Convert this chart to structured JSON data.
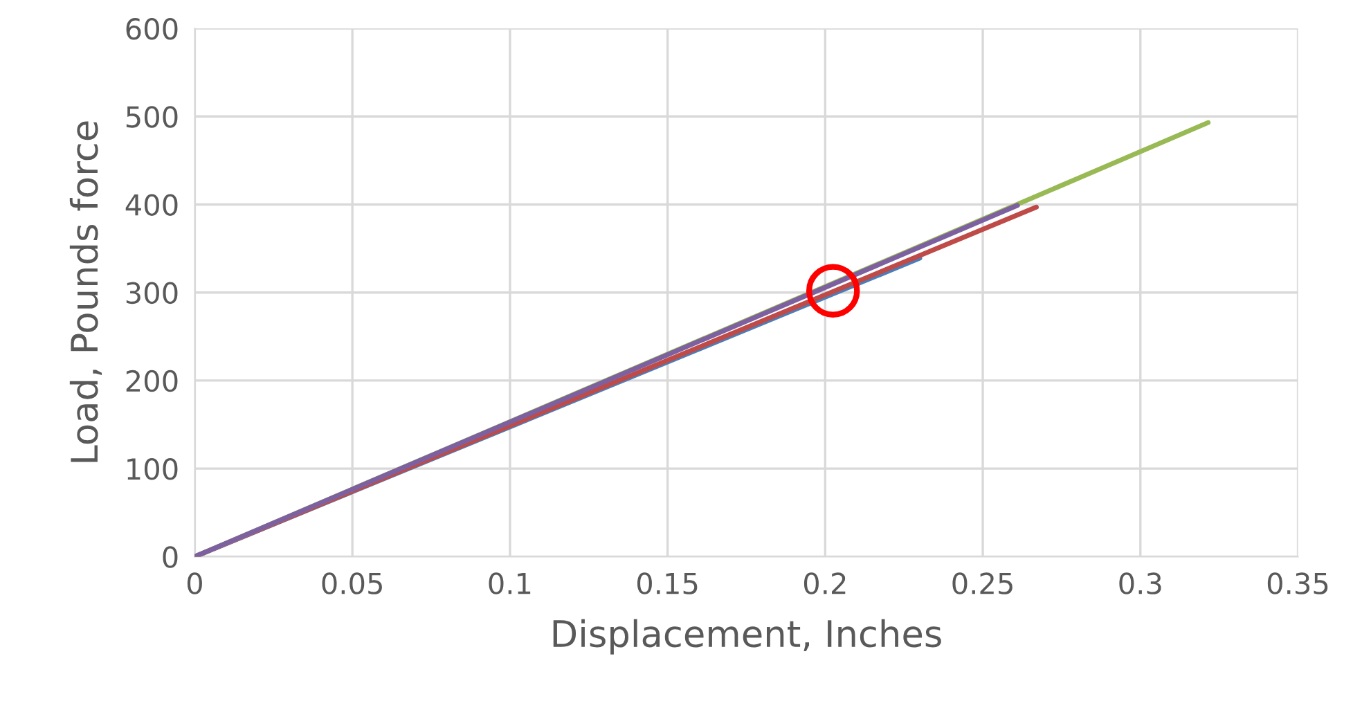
{
  "chart_data": {
    "type": "line",
    "xlabel": "Displacement, Inches",
    "ylabel": "Load, Pounds force",
    "xlim": [
      0,
      0.35
    ],
    "xticks": [
      0,
      0.05,
      0.1,
      0.15,
      0.2,
      0.25,
      0.3,
      0.35
    ],
    "ylim": [
      0,
      600
    ],
    "yticks": [
      0,
      100,
      200,
      300,
      400,
      500,
      600
    ],
    "grid": true,
    "legend": false,
    "series": [
      {
        "color": "#4a7ebb",
        "x": [
          0,
          0.23
        ],
        "values": [
          0,
          339
        ]
      },
      {
        "color": "#be4b48",
        "x": [
          0,
          0.267
        ],
        "values": [
          0,
          397
        ]
      },
      {
        "color": "#98b954",
        "x": [
          0,
          0.3215
        ],
        "values": [
          0,
          493
        ]
      },
      {
        "color": "#7d60a0",
        "x": [
          0,
          0.261
        ],
        "values": [
          0,
          399
        ]
      },
      {
        "type": "scatter",
        "marker": "circle",
        "color": "#ff0000",
        "x": [
          0.2025
        ],
        "values": [
          302
        ]
      }
    ]
  }
}
